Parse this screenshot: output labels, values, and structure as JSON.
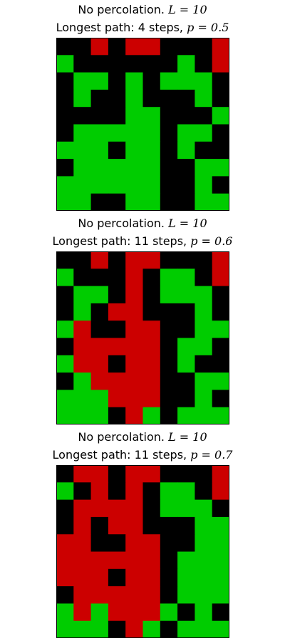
{
  "colors": {
    "empty": "#000000",
    "open": "#00cc00",
    "path": "#cc0000",
    "frame": "#000000"
  },
  "chart_data": [
    {
      "type": "heatmap",
      "title_line1_prefix": "No percolation. ",
      "title_line1_math": "L = 10",
      "title_line2_prefix": "Longest path: 4 steps, ",
      "title_line2_math": "p = 0.5",
      "L": 10,
      "p": 0.5,
      "steps": 4,
      "legend": {
        "0": "empty",
        "1": "open",
        "2": "path"
      },
      "grid": [
        [
          0,
          0,
          2,
          0,
          2,
          2,
          0,
          0,
          0,
          2
        ],
        [
          1,
          0,
          0,
          0,
          0,
          0,
          0,
          1,
          0,
          2
        ],
        [
          0,
          1,
          1,
          0,
          1,
          0,
          1,
          1,
          1,
          0
        ],
        [
          0,
          1,
          0,
          0,
          1,
          0,
          0,
          0,
          1,
          0
        ],
        [
          0,
          0,
          0,
          0,
          1,
          1,
          0,
          0,
          0,
          1
        ],
        [
          0,
          1,
          1,
          1,
          1,
          1,
          0,
          1,
          1,
          0
        ],
        [
          1,
          1,
          1,
          0,
          1,
          1,
          0,
          1,
          0,
          0
        ],
        [
          0,
          1,
          1,
          1,
          1,
          1,
          0,
          0,
          1,
          1
        ],
        [
          1,
          1,
          1,
          1,
          1,
          1,
          0,
          0,
          1,
          0
        ],
        [
          1,
          1,
          0,
          0,
          1,
          1,
          0,
          0,
          1,
          1
        ]
      ]
    },
    {
      "type": "heatmap",
      "title_line1_prefix": "No percolation. ",
      "title_line1_math": "L = 10",
      "title_line2_prefix": "Longest path: 11 steps, ",
      "title_line2_math": "p = 0.6",
      "L": 10,
      "p": 0.6,
      "steps": 11,
      "legend": {
        "0": "empty",
        "1": "open",
        "2": "path"
      },
      "grid": [
        [
          0,
          0,
          2,
          0,
          2,
          2,
          0,
          0,
          0,
          2
        ],
        [
          1,
          0,
          0,
          0,
          2,
          0,
          1,
          1,
          0,
          2
        ],
        [
          0,
          1,
          1,
          0,
          2,
          0,
          1,
          1,
          1,
          0
        ],
        [
          0,
          1,
          0,
          2,
          2,
          0,
          0,
          0,
          1,
          0
        ],
        [
          1,
          2,
          0,
          0,
          2,
          2,
          0,
          0,
          1,
          1
        ],
        [
          0,
          2,
          2,
          2,
          2,
          2,
          0,
          1,
          1,
          0
        ],
        [
          1,
          2,
          2,
          0,
          2,
          2,
          0,
          1,
          0,
          0
        ],
        [
          0,
          1,
          2,
          2,
          2,
          2,
          0,
          0,
          1,
          1
        ],
        [
          1,
          1,
          1,
          2,
          2,
          2,
          0,
          0,
          1,
          0
        ],
        [
          1,
          1,
          1,
          0,
          2,
          1,
          0,
          1,
          1,
          1
        ]
      ]
    },
    {
      "type": "heatmap",
      "title_line1_prefix": "No percolation. ",
      "title_line1_math": "L = 10",
      "title_line2_prefix": "Longest path: 11 steps, ",
      "title_line2_math": "p = 0.7",
      "L": 10,
      "p": 0.7,
      "steps": 11,
      "legend": {
        "0": "empty",
        "1": "open",
        "2": "path"
      },
      "grid": [
        [
          0,
          2,
          2,
          0,
          2,
          2,
          0,
          0,
          0,
          2
        ],
        [
          1,
          0,
          2,
          0,
          2,
          0,
          1,
          1,
          0,
          2
        ],
        [
          0,
          2,
          2,
          2,
          2,
          0,
          1,
          1,
          1,
          0
        ],
        [
          0,
          2,
          0,
          2,
          2,
          0,
          0,
          0,
          1,
          1
        ],
        [
          2,
          2,
          0,
          0,
          2,
          2,
          0,
          0,
          1,
          1
        ],
        [
          2,
          2,
          2,
          2,
          2,
          2,
          0,
          1,
          1,
          1
        ],
        [
          2,
          2,
          2,
          0,
          2,
          2,
          0,
          1,
          1,
          1
        ],
        [
          0,
          2,
          2,
          2,
          2,
          2,
          0,
          1,
          1,
          1
        ],
        [
          1,
          2,
          1,
          2,
          2,
          2,
          1,
          0,
          1,
          0
        ],
        [
          1,
          1,
          1,
          0,
          2,
          1,
          0,
          1,
          1,
          1
        ]
      ]
    }
  ]
}
